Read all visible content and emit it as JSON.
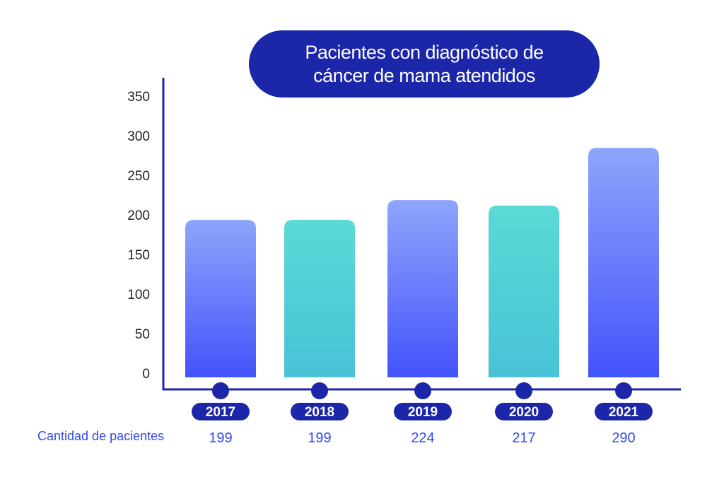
{
  "chart_data": {
    "type": "bar",
    "title_lines": [
      "Pacientes con diagnóstico de",
      "cáncer de mama atendidos"
    ],
    "categories": [
      "2017",
      "2018",
      "2019",
      "2020",
      "2021"
    ],
    "values": [
      199,
      199,
      224,
      217,
      290
    ],
    "value_labels": [
      "199",
      "199",
      "224",
      "217",
      "290"
    ],
    "bar_styles": [
      "blue",
      "teal",
      "blue",
      "teal",
      "blue"
    ],
    "ylim": [
      0,
      350
    ],
    "yticks": [
      "0",
      "50",
      "100",
      "150",
      "200",
      "250",
      "300",
      "350"
    ],
    "row_label": "Cantidad de pacientes",
    "xlabel": "",
    "ylabel": "",
    "grid": false
  },
  "colors": {
    "navy": "#1b26a8",
    "blue_top": "#8ea5fb",
    "blue_bottom": "#4353fb",
    "teal_top": "#5adad6",
    "teal_bottom": "#49c2d7",
    "value_text": "#3348f0"
  }
}
